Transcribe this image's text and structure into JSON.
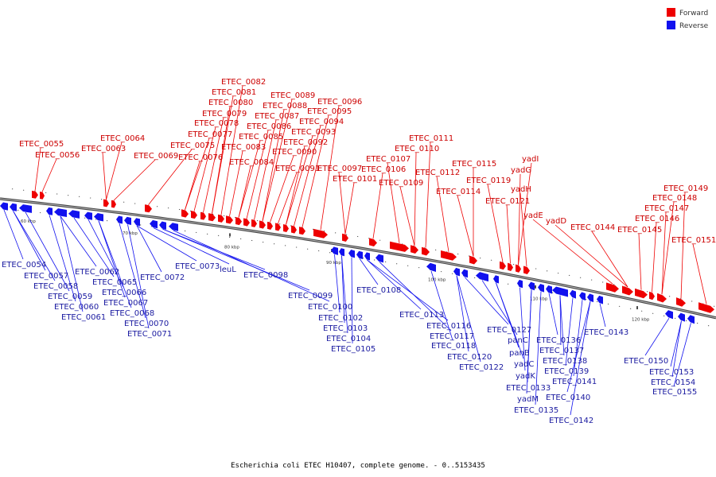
{
  "title": "Escherichia coli ETEC H10407, complete genome. - 0..5153435",
  "legend": [
    {
      "label": "Forward",
      "color": "#ee0000"
    },
    {
      "label": "Reverse",
      "color": "#1111ee"
    }
  ],
  "colors": {
    "forward": "#ee0000",
    "reverse": "#1111ee",
    "backbone": "#555555"
  },
  "axis": {
    "unit": "kbp",
    "ticks": [
      60,
      70,
      80,
      90,
      100,
      110,
      120,
      130,
      140,
      150,
      160,
      170,
      180
    ]
  },
  "labels": {
    "forward": [
      "ETEC_0055",
      "ETEC_0056",
      "ETEC_0063",
      "ETEC_0064",
      "ETEC_0069",
      "ETEC_0075",
      "ETEC_0076",
      "ETEC_0077",
      "ETEC_0078",
      "ETEC_0079",
      "ETEC_0080",
      "ETEC_0081",
      "ETEC_0082",
      "ETEC_0083",
      "ETEC_0084",
      "ETEC_0085",
      "ETEC_0086",
      "ETEC_0087",
      "ETEC_0088",
      "ETEC_0089",
      "ETEC_0090",
      "ETEC_0091",
      "ETEC_0092",
      "ETEC_0093",
      "ETEC_0094",
      "ETEC_0095",
      "ETEC_0096",
      "ETEC_0097",
      "ETEC_0101",
      "ETEC_0106",
      "ETEC_0107",
      "ETEC_0109",
      "ETEC_0110",
      "ETEC_0111",
      "ETEC_0112",
      "ETEC_0114",
      "ETEC_0115",
      "ETEC_0119",
      "ETEC_0121",
      "yadI",
      "yadG",
      "yadH",
      "yadE",
      "yadD",
      "ETEC_0144",
      "ETEC_0145",
      "ETEC_0146",
      "ETEC_0147",
      "ETEC_0148",
      "ETEC_0149",
      "ETEC_0151"
    ],
    "reverse": [
      "ETEC_0054",
      "ETEC_0057",
      "ETEC_0058",
      "ETEC_0059",
      "ETEC_0060",
      "ETEC_0061",
      "ETEC_0062",
      "ETEC_0065",
      "ETEC_0066",
      "ETEC_0067",
      "ETEC_0068",
      "ETEC_0070",
      "ETEC_0071",
      "ETEC_0072",
      "ETEC_0073",
      "leuL",
      "ETEC_0098",
      "ETEC_0099",
      "ETEC_0100",
      "ETEC_0102",
      "ETEC_0103",
      "ETEC_0104",
      "ETEC_0105",
      "ETEC_0108",
      "ETEC_0113",
      "ETEC_0116",
      "ETEC_0117",
      "ETEC_0118",
      "ETEC_0120",
      "ETEC_0122",
      "ETEC_0127",
      "panC",
      "panB",
      "yadC",
      "yadK",
      "ETEC_0133",
      "yadM",
      "ETEC_0135",
      "ETEC_0136",
      "ETEC_0137",
      "ETEC_0138",
      "ETEC_0139",
      "ETEC_0141",
      "ETEC_0140",
      "ETEC_0142",
      "ETEC_0143",
      "ETEC_0150",
      "ETEC_0153",
      "ETEC_0154",
      "ETEC_0155"
    ]
  }
}
